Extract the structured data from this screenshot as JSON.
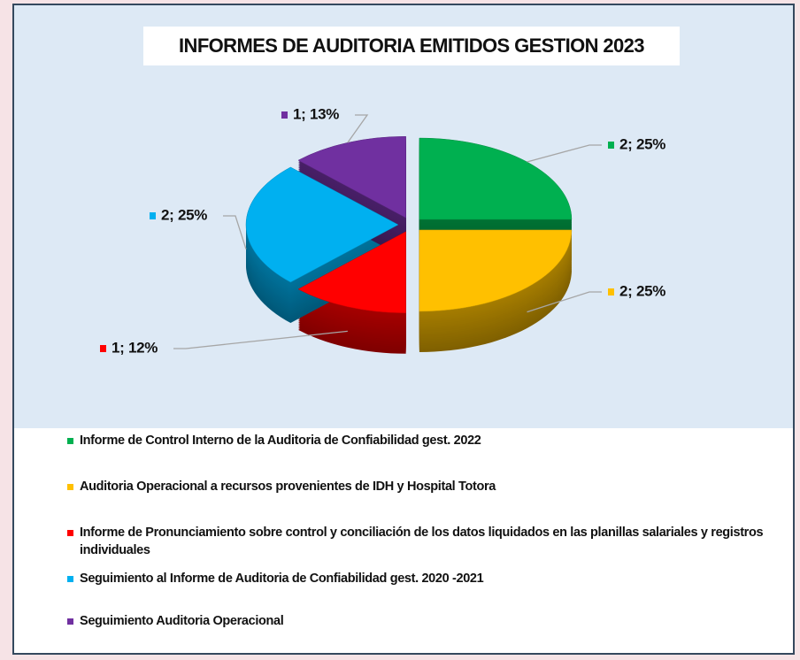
{
  "chart_data": {
    "type": "pie",
    "title": "INFORMES DE AUDITORIA  EMITIDOS GESTION 2023",
    "categories": [
      "Informe de Control Interno de la Auditoria  de Confiabilidad  gest. 2022",
      "Auditoria Operacional a recursos provenientes de  IDH y Hospital Totora",
      "Informe de Pronunciamiento sobre control y conciliación de los datos liquidados en las planillas salariales y registros individuales",
      "Seguimiento al Informe de Auditoria de Confiabilidad gest. 2020 -2021",
      "Seguimiento Auditoria Operacional"
    ],
    "values": [
      2,
      2,
      1,
      2,
      1
    ],
    "value_labels": [
      "2; 25%",
      "2; 25%",
      "1; 12%",
      "2; 25%",
      "1; 13%"
    ],
    "colors": [
      "#00b050",
      "#ffc000",
      "#ff0000",
      "#00b0f0",
      "#7030a0"
    ],
    "legend": "bottom"
  }
}
